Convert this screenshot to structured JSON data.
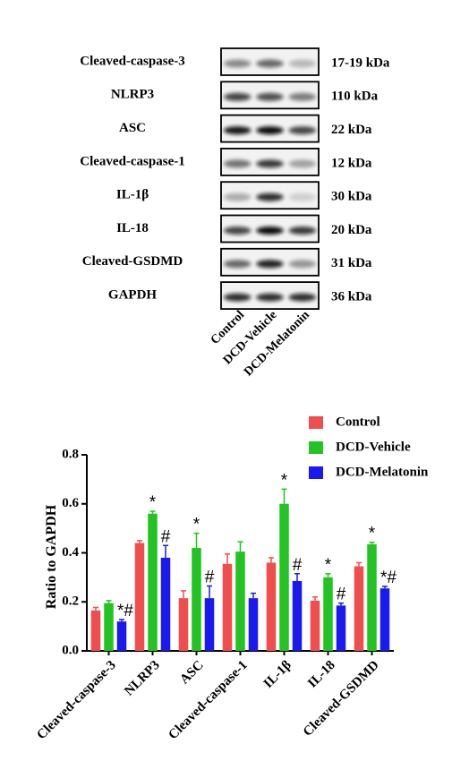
{
  "blot": {
    "rows": [
      {
        "label": "Cleaved-caspase-3",
        "size": "17-19 kDa"
      },
      {
        "label": "NLRP3",
        "size": "110 kDa"
      },
      {
        "label": "ASC",
        "size": "22 kDa"
      },
      {
        "label": "Cleaved-caspase-1",
        "size": "12 kDa"
      },
      {
        "label": "IL-1β",
        "size": "30 kDa"
      },
      {
        "label": "IL-18",
        "size": "20 kDa"
      },
      {
        "label": "Cleaved-GSDMD",
        "size": "31 kDa"
      },
      {
        "label": "GAPDH",
        "size": "36 kDa"
      }
    ],
    "lanes": [
      "Control",
      "DCD-Vehicle",
      "DCD-Melatonin"
    ]
  },
  "chart_data": {
    "type": "bar",
    "y_label": "Ratio to GAPDH",
    "categories": [
      "Cleaved-caspase-3",
      "NLRP3",
      "ASC",
      "Cleaved-caspase-1",
      "IL-1β",
      "IL-18",
      "Cleaved-GSDMD"
    ],
    "series": [
      {
        "name": "Control",
        "color": "#f04e4e",
        "values": [
          0.165,
          0.44,
          0.215,
          0.355,
          0.36,
          0.205,
          0.345
        ],
        "errors": [
          0.012,
          0.01,
          0.03,
          0.04,
          0.02,
          0.015,
          0.015
        ],
        "significance": [
          null,
          null,
          null,
          null,
          null,
          null,
          null
        ]
      },
      {
        "name": "DCD-Vehicle",
        "color": "#22c322",
        "values": [
          0.195,
          0.56,
          0.42,
          0.405,
          0.6,
          0.3,
          0.435
        ],
        "errors": [
          0.01,
          0.01,
          0.06,
          0.04,
          0.06,
          0.015,
          0.008
        ],
        "significance": [
          null,
          "*",
          "*",
          null,
          "*",
          "*",
          "*"
        ]
      },
      {
        "name": "DCD-Melatonin",
        "color": "#1a1aee",
        "values": [
          0.12,
          0.38,
          0.215,
          0.215,
          0.285,
          0.185,
          0.255
        ],
        "errors": [
          0.008,
          0.05,
          0.05,
          0.02,
          0.03,
          0.01,
          0.008
        ],
        "significance": [
          "*#",
          "#",
          "#",
          null,
          "#",
          "#",
          "*#"
        ]
      }
    ],
    "ylim": [
      0,
      0.8
    ],
    "yticks": [
      {
        "value": 0,
        "label": "0.0"
      },
      0.2,
      0.4,
      0.6,
      0.8
    ]
  }
}
